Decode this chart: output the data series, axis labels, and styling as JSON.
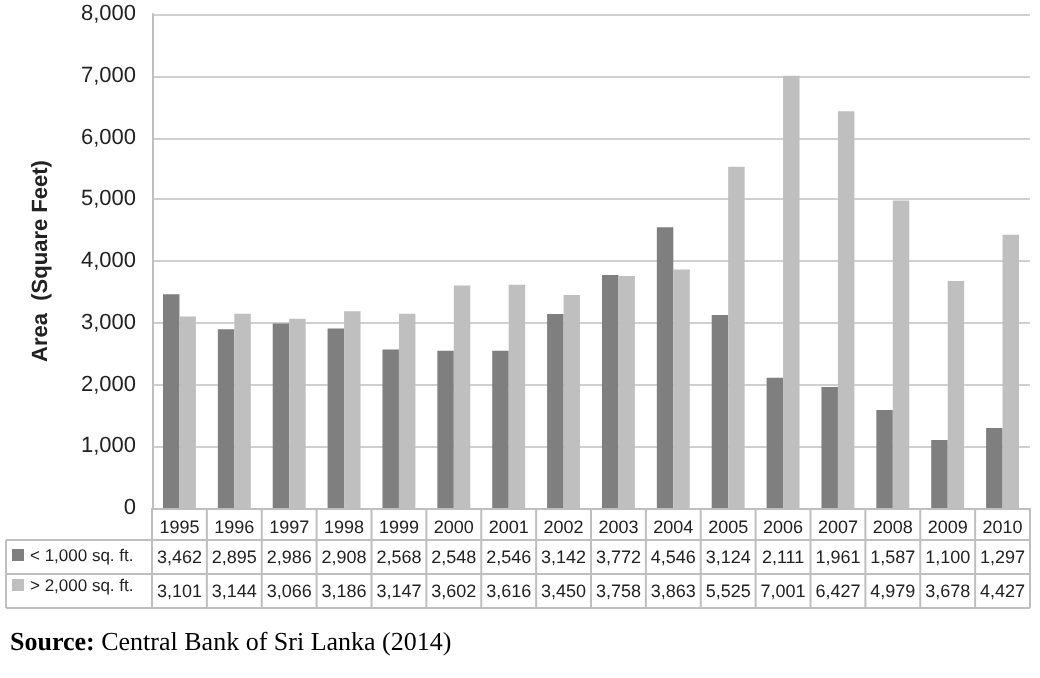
{
  "chart_data": {
    "type": "bar",
    "ylabel": "Area  (Square Feet)",
    "categories": [
      "1995",
      "1996",
      "1997",
      "1998",
      "1999",
      "2000",
      "2001",
      "2002",
      "2003",
      "2004",
      "2005",
      "2006",
      "2007",
      "2008",
      "2009",
      "2010"
    ],
    "series": [
      {
        "name": "< 1,000 sq. ft.",
        "color": "#7f7f7f",
        "values": [
          3462,
          2895,
          2986,
          2908,
          2568,
          2548,
          2546,
          3142,
          3772,
          4546,
          3124,
          2111,
          1961,
          1587,
          1100,
          1297
        ],
        "value_labels": [
          "3,462",
          "2,895",
          "2,986",
          "2,908",
          "2,568",
          "2,548",
          "2,546",
          "3,142",
          "3,772",
          "4,546",
          "3,124",
          "2,111",
          "1,961",
          "1,587",
          "1,100",
          "1,297"
        ]
      },
      {
        "name": "> 2,000 sq. ft.",
        "color": "#bfbfbf",
        "values": [
          3101,
          3144,
          3066,
          3186,
          3147,
          3602,
          3616,
          3450,
          3758,
          3863,
          5525,
          7001,
          6427,
          4979,
          3678,
          4427
        ],
        "value_labels": [
          "3,101",
          "3,144",
          "3,066",
          "3,186",
          "3,147",
          "3,602",
          "3,616",
          "3,450",
          "3,758",
          "3,863",
          "5,525",
          "7,001",
          "6,427",
          "4,979",
          "3,678",
          "4,427"
        ]
      }
    ],
    "ylim": [
      0,
      8000
    ],
    "yticks": [
      0,
      {
        "value": 1000,
        "label": "1,000"
      },
      {
        "value": 2000,
        "label": "2,000"
      },
      {
        "value": 3000,
        "label": "3,000"
      },
      {
        "value": 4000,
        "label": "4,000"
      },
      {
        "value": 5000,
        "label": "5,000"
      },
      {
        "value": 6000,
        "label": "6,000"
      },
      {
        "value": 7000,
        "label": "7,000"
      },
      {
        "value": 8000,
        "label": "8,000"
      }
    ],
    "grid": "y",
    "legend": "bottom left",
    "annotations": [
      "Source: Central Bank of Sri Lanka (2014)"
    ]
  }
}
